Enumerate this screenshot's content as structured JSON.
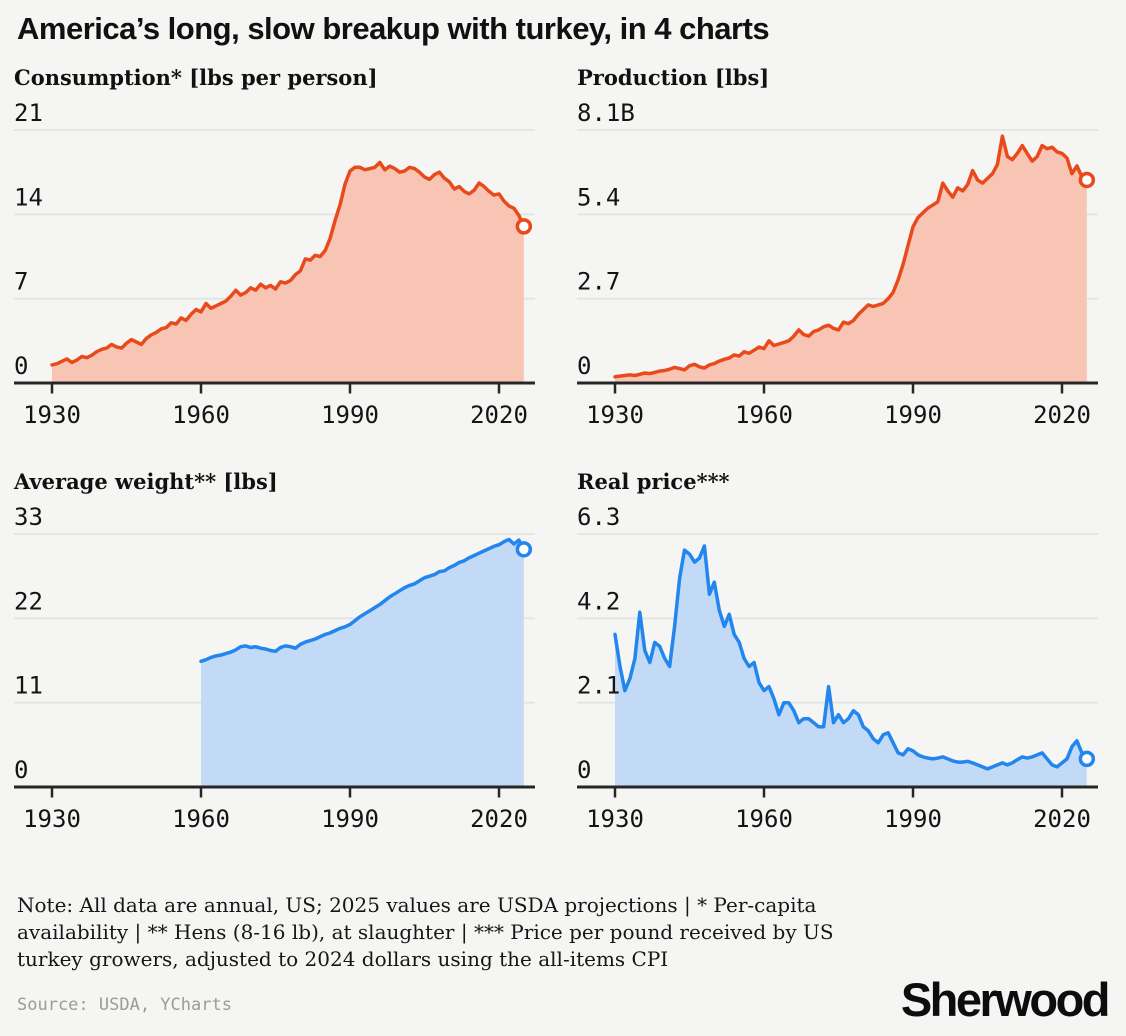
{
  "page": {
    "title": "America’s long, slow breakup with turkey, in 4 charts",
    "note_lines": [
      "Note: All data are annual, US; 2025 values are USDA projections | * Per-capita",
      "availability | ** Hens (8-16 lb), at slaughter | *** Price per pound received by US",
      "turkey growers, adjusted to 2024 dollars using the all-items CPI"
    ],
    "source": "Source: USDA, YCharts",
    "logo": "Sherwood"
  },
  "colors": {
    "background": "#F5F5F3",
    "gridline": "#E4E4E1",
    "axis": "#262626",
    "orange_line": "#E84A1C",
    "orange_fill": "#F8C5B5",
    "blue_line": "#2286EE",
    "blue_fill": "#C3DAF7",
    "source_gray": "#9B9B98"
  },
  "chart_data": [
    {
      "type": "area",
      "title": "Consumption* [lbs per person]",
      "line_color": "#E84A1C",
      "fill_color": "#F8C5B5",
      "ylim": [
        0,
        21
      ],
      "y_tick_values": [
        21,
        14,
        7,
        0
      ],
      "y_tick_labels": [
        "21",
        "14",
        "7",
        "0"
      ],
      "x_tick_values": [
        1930,
        1960,
        1990,
        2020
      ],
      "x_tick_labels": [
        "1930",
        "1960",
        "1990",
        "2020"
      ],
      "start_year": 1930,
      "end_marker": true,
      "values": [
        1.5,
        1.6,
        1.8,
        2.0,
        1.7,
        1.9,
        2.2,
        2.1,
        2.3,
        2.6,
        2.8,
        2.9,
        3.2,
        3.0,
        2.9,
        3.3,
        3.6,
        3.4,
        3.2,
        3.7,
        4.0,
        4.2,
        4.5,
        4.6,
        5.0,
        4.9,
        5.4,
        5.2,
        5.7,
        6.1,
        5.9,
        6.6,
        6.2,
        6.4,
        6.6,
        6.8,
        7.2,
        7.7,
        7.3,
        7.5,
        7.9,
        7.7,
        8.2,
        7.9,
        8.1,
        7.8,
        8.4,
        8.3,
        8.5,
        9.0,
        9.3,
        10.3,
        10.2,
        10.6,
        10.5,
        11.0,
        12.0,
        13.5,
        14.8,
        16.5,
        17.6,
        17.9,
        17.9,
        17.7,
        17.8,
        17.9,
        18.3,
        17.7,
        18.0,
        17.8,
        17.5,
        17.6,
        17.9,
        17.8,
        17.5,
        17.1,
        16.9,
        17.3,
        17.5,
        17.0,
        16.7,
        16.1,
        16.3,
        15.9,
        15.7,
        16.0,
        16.6,
        16.3,
        15.9,
        15.6,
        15.7,
        15.1,
        14.7,
        14.5,
        13.9,
        13.0
      ]
    },
    {
      "type": "area",
      "title": "Production [lbs]",
      "line_color": "#E84A1C",
      "fill_color": "#F8C5B5",
      "ylim": [
        0,
        8.1
      ],
      "y_tick_values": [
        8.1,
        5.4,
        2.7,
        0
      ],
      "y_tick_labels": [
        "8.1B",
        "5.4",
        "2.7",
        "0"
      ],
      "x_tick_values": [
        1930,
        1960,
        1990,
        2020
      ],
      "x_tick_labels": [
        "1930",
        "1960",
        "1990",
        "2020"
      ],
      "start_year": 1930,
      "end_marker": true,
      "values": [
        0.2,
        0.22,
        0.24,
        0.26,
        0.24,
        0.28,
        0.32,
        0.3,
        0.34,
        0.38,
        0.4,
        0.44,
        0.5,
        0.46,
        0.42,
        0.55,
        0.6,
        0.52,
        0.48,
        0.58,
        0.62,
        0.7,
        0.76,
        0.8,
        0.9,
        0.86,
        1.0,
        0.95,
        1.05,
        1.15,
        1.1,
        1.35,
        1.2,
        1.25,
        1.3,
        1.35,
        1.5,
        1.7,
        1.55,
        1.5,
        1.65,
        1.7,
        1.8,
        1.85,
        1.75,
        1.7,
        1.95,
        1.9,
        2.0,
        2.2,
        2.35,
        2.5,
        2.45,
        2.5,
        2.55,
        2.7,
        2.9,
        3.3,
        3.8,
        4.4,
        5.0,
        5.3,
        5.45,
        5.6,
        5.7,
        5.8,
        6.4,
        6.15,
        5.95,
        6.25,
        6.15,
        6.35,
        6.8,
        6.5,
        6.4,
        6.55,
        6.7,
        7.0,
        7.9,
        7.25,
        7.15,
        7.35,
        7.6,
        7.35,
        7.1,
        7.25,
        7.6,
        7.5,
        7.55,
        7.4,
        7.35,
        7.2,
        6.7,
        6.95,
        6.6,
        6.5
      ]
    },
    {
      "type": "area",
      "title": "Average weight** [lbs]",
      "line_color": "#2286EE",
      "fill_color": "#C3DAF7",
      "ylim": [
        0,
        33
      ],
      "y_tick_values": [
        33,
        22,
        11,
        0
      ],
      "y_tick_labels": [
        "33",
        "22",
        "11",
        "0"
      ],
      "x_tick_values": [
        1930,
        1960,
        1990,
        2020
      ],
      "x_tick_labels": [
        "1930",
        "1960",
        "1990",
        "2020"
      ],
      "start_year": 1960,
      "end_marker": true,
      "values": [
        16.4,
        16.6,
        16.9,
        17.1,
        17.2,
        17.4,
        17.6,
        17.9,
        18.3,
        18.4,
        18.2,
        18.3,
        18.1,
        18.0,
        17.8,
        17.7,
        18.2,
        18.4,
        18.3,
        18.1,
        18.6,
        18.9,
        19.1,
        19.3,
        19.6,
        19.9,
        20.1,
        20.4,
        20.7,
        20.9,
        21.2,
        21.7,
        22.2,
        22.6,
        23.0,
        23.4,
        23.8,
        24.3,
        24.8,
        25.2,
        25.6,
        26.0,
        26.3,
        26.5,
        26.9,
        27.3,
        27.5,
        27.7,
        28.1,
        28.2,
        28.6,
        28.9,
        29.3,
        29.5,
        29.9,
        30.2,
        30.5,
        30.8,
        31.1,
        31.4,
        31.6,
        32.0,
        32.3,
        31.7,
        32.2,
        31.0
      ]
    },
    {
      "type": "area",
      "title": "Real price***",
      "line_color": "#2286EE",
      "fill_color": "#C3DAF7",
      "ylim": [
        0,
        6.3
      ],
      "y_tick_values": [
        6.3,
        4.2,
        2.1,
        0
      ],
      "y_tick_labels": [
        "6.3",
        "4.2",
        "2.1",
        "0"
      ],
      "x_tick_values": [
        1930,
        1960,
        1990,
        2020
      ],
      "x_tick_labels": [
        "1930",
        "1960",
        "1990",
        "2020"
      ],
      "start_year": 1930,
      "end_marker": true,
      "values": [
        3.8,
        3.0,
        2.4,
        2.7,
        3.2,
        4.35,
        3.4,
        3.1,
        3.6,
        3.5,
        3.2,
        3.0,
        4.0,
        5.2,
        5.9,
        5.8,
        5.6,
        5.7,
        6.0,
        4.8,
        5.1,
        4.4,
        4.0,
        4.3,
        3.8,
        3.6,
        3.2,
        3.0,
        3.1,
        2.6,
        2.4,
        2.5,
        2.2,
        1.8,
        2.1,
        2.1,
        1.9,
        1.6,
        1.7,
        1.7,
        1.6,
        1.5,
        1.5,
        2.5,
        1.6,
        1.8,
        1.6,
        1.7,
        1.9,
        1.8,
        1.5,
        1.4,
        1.2,
        1.1,
        1.3,
        1.35,
        1.1,
        0.85,
        0.8,
        0.95,
        0.9,
        0.8,
        0.75,
        0.72,
        0.7,
        0.72,
        0.75,
        0.7,
        0.65,
        0.62,
        0.62,
        0.64,
        0.6,
        0.55,
        0.5,
        0.45,
        0.5,
        0.55,
        0.6,
        0.55,
        0.6,
        0.68,
        0.75,
        0.72,
        0.75,
        0.8,
        0.85,
        0.7,
        0.55,
        0.5,
        0.6,
        0.7,
        1.0,
        1.15,
        0.85,
        0.7
      ]
    }
  ]
}
